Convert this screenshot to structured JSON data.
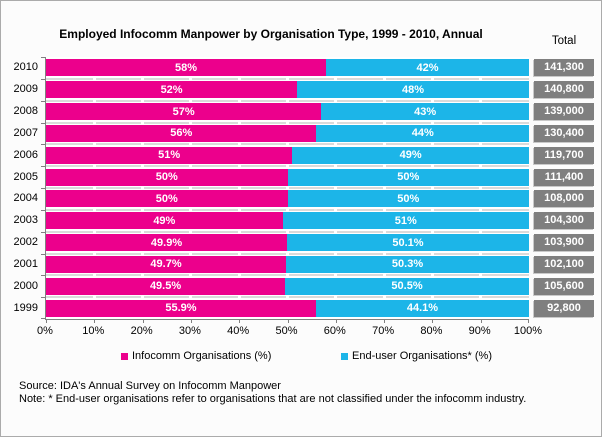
{
  "title": "Employed Infocomm Manpower by Organisation Type, 1999 - 2010, Annual",
  "total_header": "Total",
  "chart_data": {
    "type": "bar",
    "stacked": true,
    "orientation": "horizontal",
    "categories": [
      "2010",
      "2009",
      "2008",
      "2007",
      "2006",
      "2005",
      "2004",
      "2003",
      "2002",
      "2001",
      "2000",
      "1999"
    ],
    "series": [
      {
        "name": "Infocomm Organisations (%)",
        "color": "#ec008c",
        "values": [
          58,
          52,
          57,
          56,
          51,
          50,
          50,
          49,
          49.9,
          49.7,
          49.5,
          55.9
        ],
        "labels": [
          "58%",
          "52%",
          "57%",
          "56%",
          "51%",
          "50%",
          "50%",
          "49%",
          "49.9%",
          "49.7%",
          "49.5%",
          "55.9%"
        ]
      },
      {
        "name": "End-user Organisations* (%)",
        "color": "#1cb5e8",
        "values": [
          42,
          48,
          43,
          44,
          49,
          50,
          50,
          51,
          50.1,
          50.3,
          50.5,
          44.1
        ],
        "labels": [
          "42%",
          "48%",
          "43%",
          "44%",
          "49%",
          "50%",
          "50%",
          "51%",
          "50.1%",
          "50.3%",
          "50.5%",
          "44.1%"
        ]
      }
    ],
    "totals": [
      "141,300",
      "140,800",
      "139,000",
      "130,400",
      "119,700",
      "111,400",
      "108,000",
      "104,300",
      "103,900",
      "102,100",
      "105,600",
      "92,800"
    ],
    "x_ticks": [
      "0%",
      "10%",
      "20%",
      "30%",
      "40%",
      "50%",
      "60%",
      "70%",
      "80%",
      "90%",
      "100%"
    ],
    "xlim": [
      0,
      100
    ],
    "xlabel": "",
    "ylabel": "",
    "grid": "vertical-faint",
    "legend_position": "bottom"
  },
  "footer": {
    "source": "Source: IDA's Annual Survey on Infocomm Manpower",
    "note": "Note: * End-user organisations refer to organisations that are not classified under the infocomm industry."
  },
  "colors": {
    "infocomm": "#ec008c",
    "enduser": "#1cb5e8",
    "total_badge": "#7f7f7f",
    "axis": "#808080",
    "grid": "#dadada"
  }
}
